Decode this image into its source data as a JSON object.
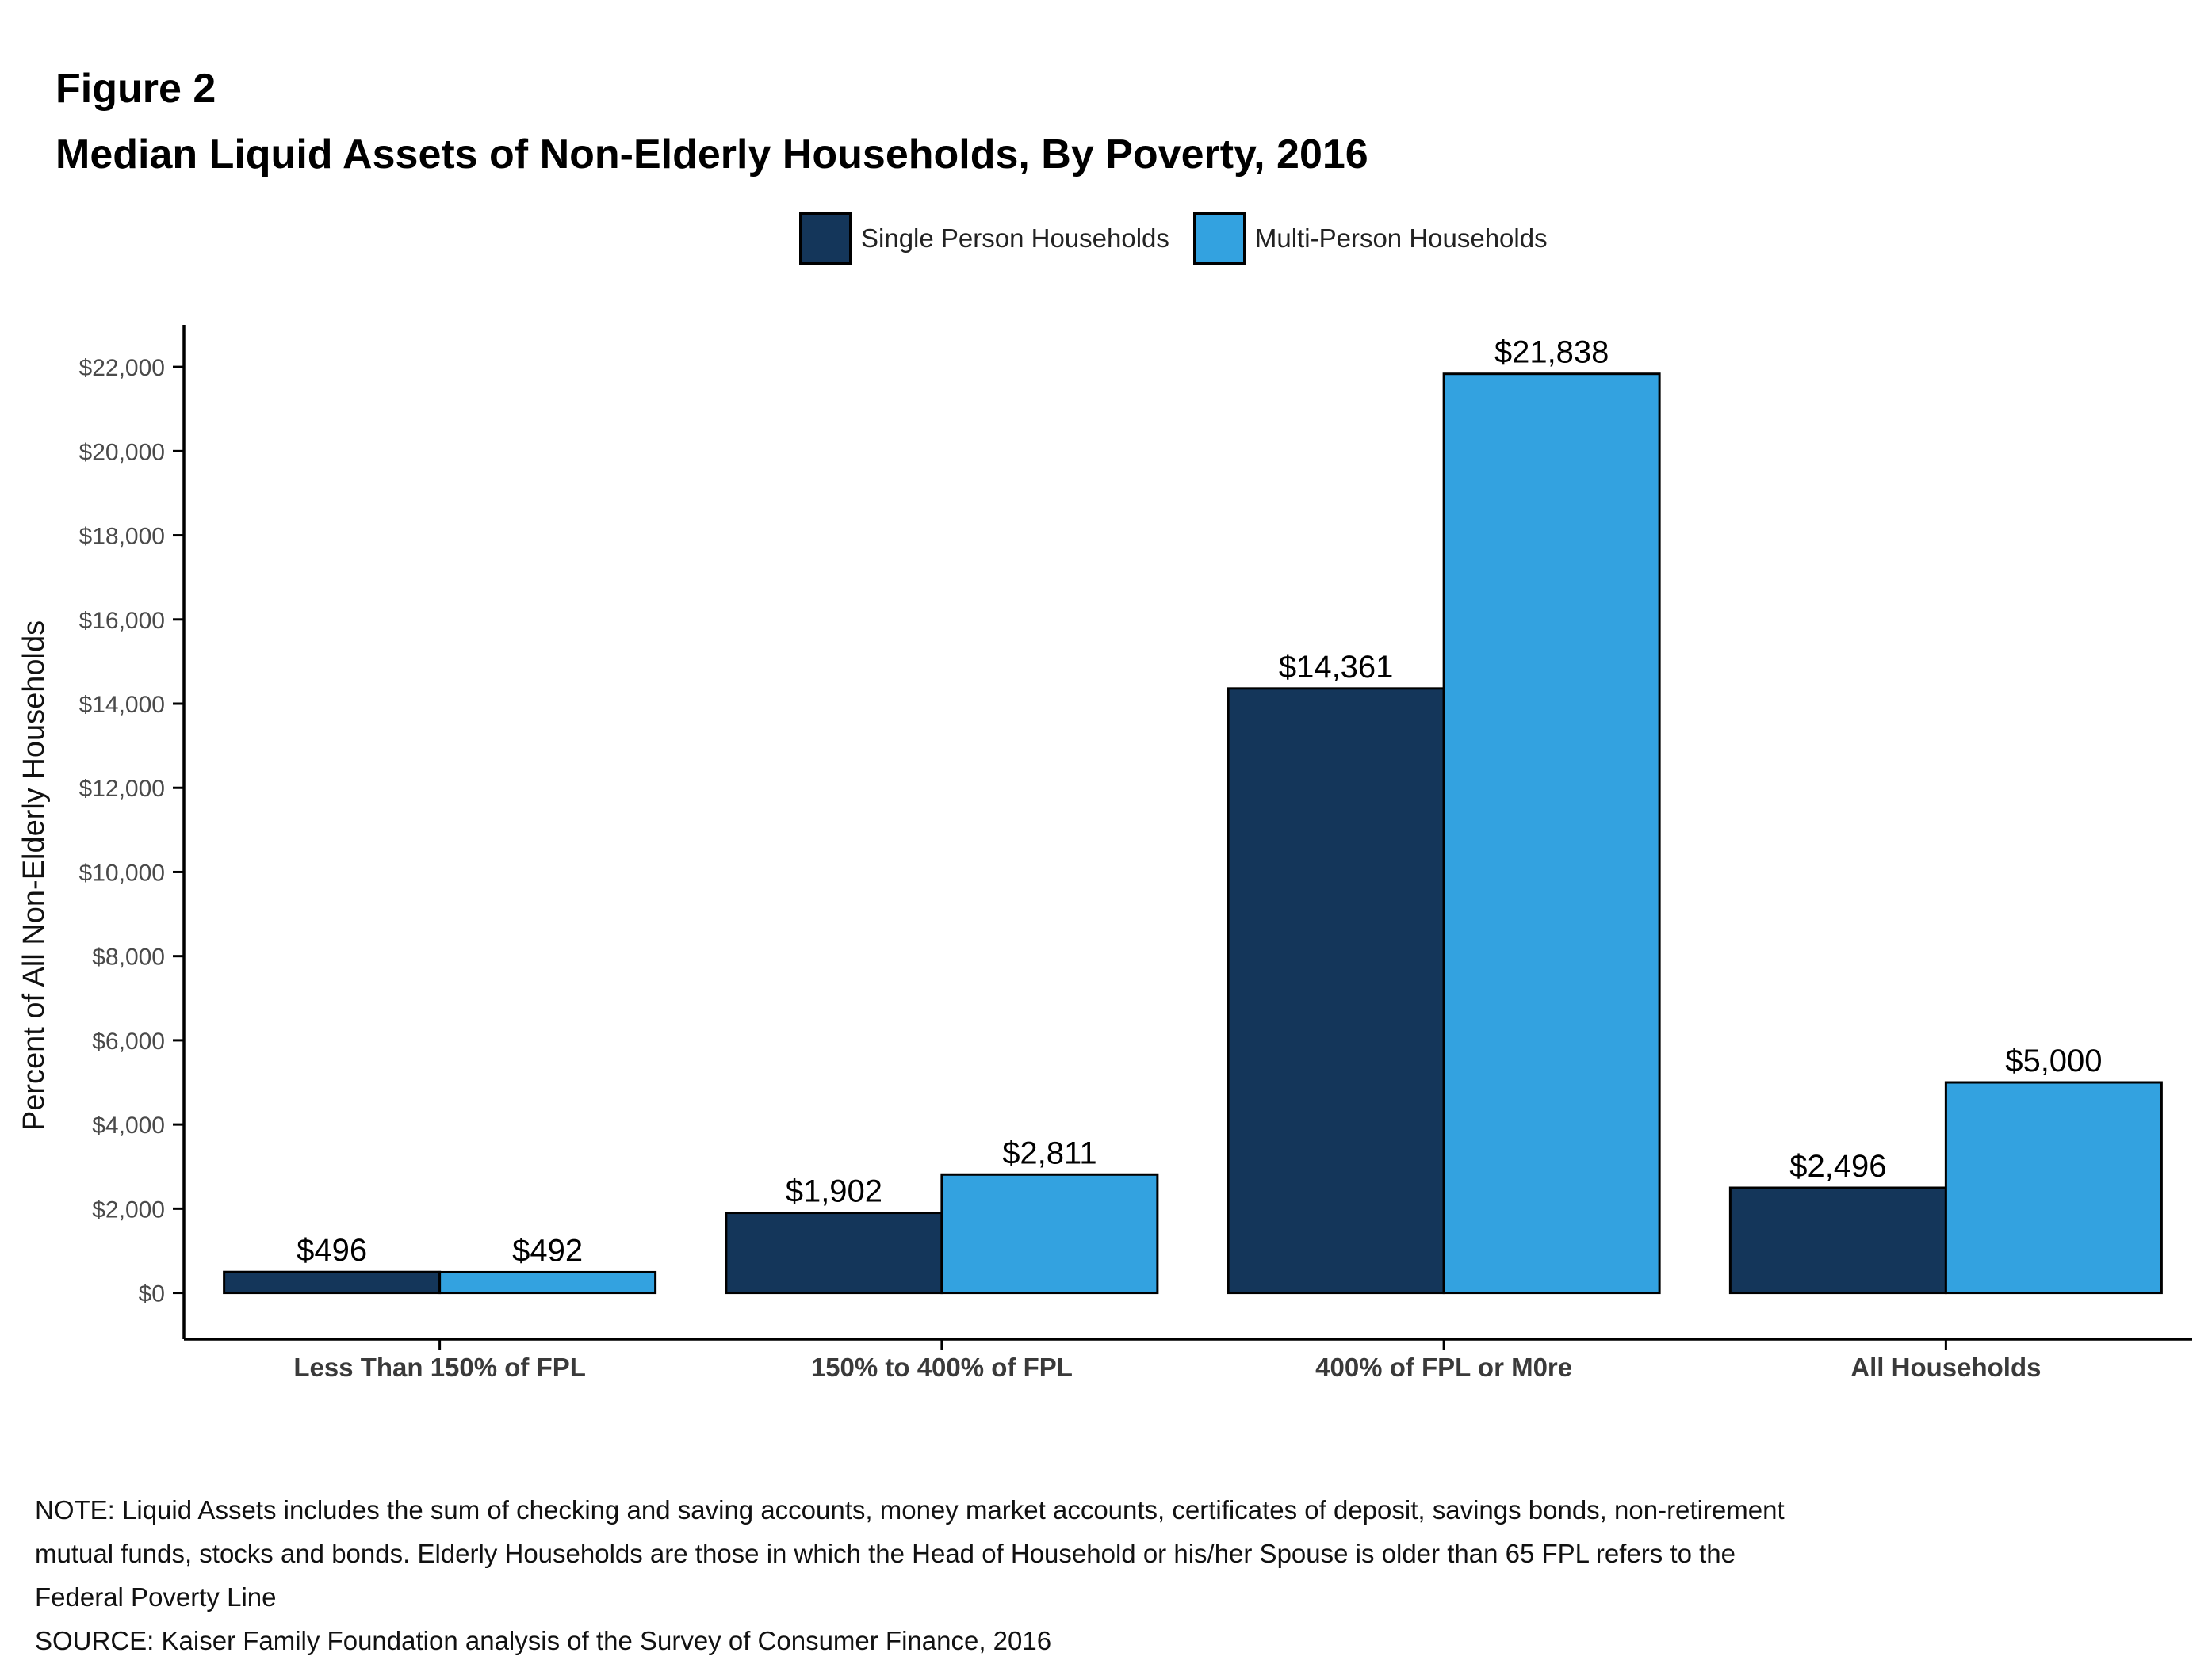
{
  "figure_label": "Figure 2",
  "title": "Median Liquid Assets of Non-Elderly Households, By Poverty, 2016",
  "colors": {
    "single": "#14365a",
    "multi": "#33a2e0",
    "axis": "#000000"
  },
  "chart_data": {
    "type": "bar",
    "title": "Median Liquid Assets of Non-Elderly Households, By Poverty, 2016",
    "xlabel": "",
    "ylabel": "Percent of All Non-Elderly Households",
    "ylim": [
      -1100,
      23000
    ],
    "yticks": [
      0,
      2000,
      4000,
      6000,
      8000,
      10000,
      12000,
      14000,
      16000,
      18000,
      20000,
      22000
    ],
    "ytick_labels": [
      "$0",
      "$2,000",
      "$4,000",
      "$6,000",
      "$8,000",
      "$10,000",
      "$12,000",
      "$14,000",
      "$16,000",
      "$18,000",
      "$20,000",
      "$22,000"
    ],
    "categories": [
      "Less Than 150% of FPL",
      "150% to 400% of FPL",
      "400% of FPL or M0re",
      "All Households"
    ],
    "series": [
      {
        "name": "Single Person Households",
        "values": [
          496,
          1902,
          14361,
          2496
        ],
        "labels": [
          "$496",
          "$1,902",
          "$14,361",
          "$2,496"
        ]
      },
      {
        "name": "Multi-Person Households",
        "values": [
          492,
          2811,
          21838,
          5000
        ],
        "labels": [
          "$492",
          "$2,811",
          "$21,838",
          "$5,000"
        ]
      }
    ],
    "legend_position": "top",
    "grid": false
  },
  "notes": {
    "line1": "NOTE: Liquid Assets includes the sum of checking and saving accounts, money market accounts, certificates of deposit, savings bonds, non-retirement",
    "line2": "mutual funds, stocks and bonds.  Elderly Households are those in which the Head of Household or his/her Spouse is older than 65 FPL refers to the",
    "line3": "Federal Poverty Line",
    "source": "SOURCE: Kaiser Family Foundation analysis of the Survey of Consumer Finance, 2016"
  }
}
